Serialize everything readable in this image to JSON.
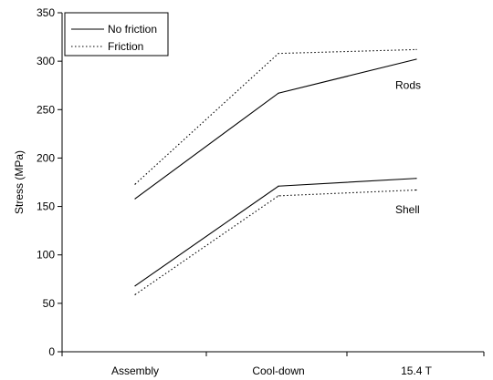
{
  "chart_data": {
    "type": "line",
    "categories": [
      "Assembly",
      "Cool-down",
      "15.4 T"
    ],
    "ylabel": "Stress (MPa)",
    "xlabel": "",
    "title": "",
    "ylim": [
      0,
      350
    ],
    "yticks": [
      0,
      50,
      100,
      150,
      200,
      250,
      300,
      350
    ],
    "grid": false,
    "legend": {
      "placement": "top-left",
      "entries": [
        {
          "label": "No friction",
          "style": "solid"
        },
        {
          "label": "Friction",
          "style": "dotted"
        }
      ]
    },
    "series": [
      {
        "group": "Rods",
        "style": "solid",
        "values": [
          158,
          267,
          302
        ]
      },
      {
        "group": "Rods",
        "style": "dotted",
        "values": [
          173,
          308,
          312
        ]
      },
      {
        "group": "Shell",
        "style": "solid",
        "values": [
          68,
          171,
          179
        ]
      },
      {
        "group": "Shell",
        "style": "dotted",
        "values": [
          59,
          161,
          167
        ]
      }
    ],
    "annotations": [
      {
        "text": "Rods",
        "x": "15.4 T",
        "y": 275
      },
      {
        "text": "Shell",
        "x": "15.4 T",
        "y": 147
      }
    ],
    "colors": {
      "line": "#000000",
      "background": "#ffffff"
    }
  }
}
